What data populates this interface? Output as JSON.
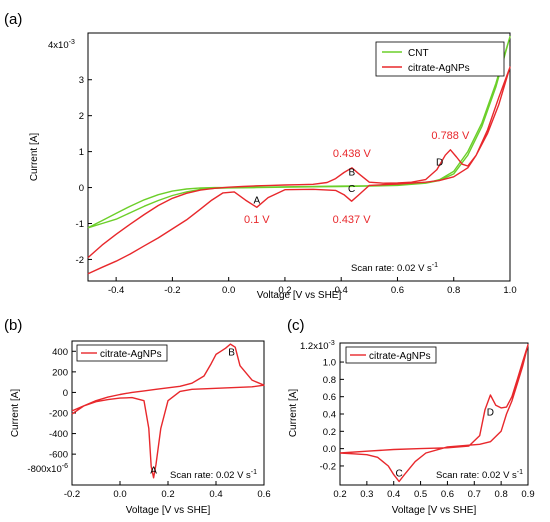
{
  "chart_data": [
    {
      "panel_label": "(a)",
      "type": "line",
      "xlabel": "Voltage [V vs SHE]",
      "ylabel": "Current [A]",
      "y_exponent_label": "4x10",
      "y_exponent_sup": "-3",
      "xlim": [
        -0.5,
        1.0
      ],
      "ylim": [
        -2.6,
        4.3
      ],
      "x_ticks": [
        -0.4,
        -0.2,
        0.0,
        0.2,
        0.4,
        0.6,
        0.8,
        1.0
      ],
      "x_tick_labels": [
        "-0.4",
        "-0.2",
        "0.0",
        "0.2",
        "0.4",
        "0.6",
        "0.8",
        "1.0"
      ],
      "y_ticks": [
        -2,
        -1,
        0,
        1,
        2,
        3
      ],
      "y_tick_labels": [
        "-2",
        "-1",
        "0",
        "1",
        "2",
        "3"
      ],
      "scan_rate_text": "Scan rate: 0.02 V s",
      "scan_rate_sup": "-1",
      "legend_position": "top-right",
      "series": [
        {
          "name": "CNT",
          "color": "#6ccf2a",
          "x": [
            -0.5,
            -0.45,
            -0.4,
            -0.35,
            -0.3,
            -0.25,
            -0.2,
            -0.15,
            -0.1,
            -0.05,
            0.0,
            0.1,
            0.2,
            0.3,
            0.4,
            0.5,
            0.6,
            0.7,
            0.75,
            0.8,
            0.85,
            0.9,
            0.95,
            1.0,
            0.95,
            0.9,
            0.85,
            0.8,
            0.75,
            0.7,
            0.6,
            0.5,
            0.4,
            0.3,
            0.2,
            0.1,
            0.0,
            -0.05,
            -0.1,
            -0.15,
            -0.2,
            -0.25,
            -0.3,
            -0.35,
            -0.4,
            -0.45,
            -0.5
          ],
          "y": [
            -1.12,
            -0.92,
            -0.72,
            -0.52,
            -0.34,
            -0.2,
            -0.1,
            -0.04,
            -0.01,
            0.0,
            0.0,
            0.01,
            0.02,
            0.03,
            0.04,
            0.05,
            0.07,
            0.12,
            0.22,
            0.45,
            1.0,
            1.8,
            2.9,
            4.2,
            2.8,
            1.7,
            0.9,
            0.38,
            0.2,
            0.12,
            0.06,
            0.04,
            0.03,
            0.02,
            0.01,
            0.0,
            -0.01,
            -0.02,
            -0.05,
            -0.12,
            -0.22,
            -0.36,
            -0.52,
            -0.7,
            -0.88,
            -1.0,
            -1.12
          ]
        },
        {
          "name": "citrate-AgNPs",
          "color": "#e8282c",
          "x": [
            -0.5,
            -0.45,
            -0.4,
            -0.35,
            -0.3,
            -0.25,
            -0.2,
            -0.15,
            -0.1,
            -0.05,
            0.0,
            0.05,
            0.1,
            0.15,
            0.2,
            0.25,
            0.3,
            0.35,
            0.38,
            0.41,
            0.438,
            0.46,
            0.5,
            0.55,
            0.6,
            0.65,
            0.7,
            0.74,
            0.77,
            0.788,
            0.81,
            0.83,
            0.85,
            0.88,
            0.92,
            0.96,
            1.0,
            0.96,
            0.92,
            0.88,
            0.85,
            0.8,
            0.75,
            0.7,
            0.6,
            0.5,
            0.46,
            0.437,
            0.41,
            0.38,
            0.3,
            0.2,
            0.14,
            0.1,
            0.06,
            0.02,
            -0.02,
            -0.06,
            -0.1,
            -0.15,
            -0.2,
            -0.25,
            -0.3,
            -0.35,
            -0.4,
            -0.45,
            -0.5
          ],
          "y": [
            -1.95,
            -1.6,
            -1.3,
            -1.02,
            -0.75,
            -0.5,
            -0.3,
            -0.16,
            -0.07,
            -0.02,
            0.01,
            0.03,
            0.05,
            0.06,
            0.07,
            0.08,
            0.09,
            0.14,
            0.25,
            0.42,
            0.55,
            0.4,
            0.15,
            0.12,
            0.13,
            0.15,
            0.22,
            0.5,
            0.9,
            1.05,
            0.85,
            0.65,
            0.6,
            0.9,
            1.6,
            2.5,
            3.35,
            2.3,
            1.5,
            0.9,
            0.55,
            0.3,
            0.2,
            0.15,
            0.1,
            0.06,
            -0.22,
            -0.38,
            -0.2,
            -0.08,
            -0.05,
            -0.06,
            -0.28,
            -0.55,
            -0.35,
            -0.12,
            -0.15,
            -0.35,
            -0.6,
            -0.9,
            -1.15,
            -1.4,
            -1.62,
            -1.85,
            -2.05,
            -2.22,
            -2.4
          ]
        }
      ],
      "annotations": [
        {
          "text": "0.1 V",
          "x": 0.1,
          "y": -0.98,
          "color": "#e8282c"
        },
        {
          "text": "0.438 V",
          "x": 0.438,
          "y": 0.85,
          "color": "#e8282c"
        },
        {
          "text": "0.437 V",
          "x": 0.437,
          "y": -0.98,
          "color": "#e8282c"
        },
        {
          "text": "0.788 V",
          "x": 0.788,
          "y": 1.35,
          "color": "#e8282c"
        }
      ],
      "peak_labels": [
        {
          "text": "A",
          "x": 0.1,
          "y": -0.45
        },
        {
          "text": "B",
          "x": 0.438,
          "y": 0.33
        },
        {
          "text": "C",
          "x": 0.437,
          "y": -0.12
        },
        {
          "text": "D",
          "x": 0.75,
          "y": 0.62
        }
      ]
    },
    {
      "panel_label": "(b)",
      "type": "line",
      "xlabel": "Voltage [V vs SHE]",
      "ylabel": "Current [A]",
      "y_exponent_label": "-800x10",
      "y_exponent_sup": "-6",
      "xlim": [
        -0.2,
        0.6
      ],
      "ylim": [
        -900,
        500
      ],
      "x_ticks": [
        -0.2,
        0.0,
        0.2,
        0.4,
        0.6
      ],
      "x_tick_labels": [
        "-0.2",
        "0.0",
        "0.2",
        "0.4",
        "0.6"
      ],
      "y_ticks": [
        400,
        200,
        0,
        -200,
        -400,
        -600
      ],
      "y_tick_labels": [
        "400",
        "200",
        "0",
        "-200",
        "-400",
        "-600"
      ],
      "scan_rate_text": "Scan rate: 0.02 V s",
      "scan_rate_sup": "-1",
      "legend_position": "top-left",
      "series": [
        {
          "name": "citrate-AgNPs",
          "color": "#e8282c",
          "x": [
            -0.2,
            -0.15,
            -0.1,
            -0.05,
            0.0,
            0.05,
            0.1,
            0.15,
            0.2,
            0.25,
            0.3,
            0.35,
            0.38,
            0.4,
            0.42,
            0.44,
            0.46,
            0.48,
            0.5,
            0.55,
            0.6,
            0.55,
            0.5,
            0.45,
            0.4,
            0.35,
            0.3,
            0.25,
            0.2,
            0.17,
            0.15,
            0.14,
            0.13,
            0.12,
            0.1,
            0.05,
            0.0,
            -0.05,
            -0.1,
            -0.15,
            -0.2
          ],
          "y": [
            -210,
            -130,
            -80,
            -45,
            -20,
            0,
            15,
            30,
            45,
            60,
            90,
            160,
            280,
            370,
            400,
            430,
            470,
            440,
            260,
            120,
            70,
            55,
            50,
            45,
            40,
            35,
            30,
            10,
            -80,
            -350,
            -700,
            -830,
            -720,
            -350,
            -80,
            -50,
            -55,
            -70,
            -90,
            -130,
            -180
          ]
        }
      ],
      "annotations": [],
      "peak_labels": [
        {
          "text": "A",
          "x": 0.14,
          "y": -790
        },
        {
          "text": "B",
          "x": 0.465,
          "y": 360
        }
      ]
    },
    {
      "panel_label": "(c)",
      "type": "line",
      "xlabel": "Voltage [V vs SHE]",
      "ylabel": "Current [A]",
      "y_exponent_label": "1.2x10",
      "y_exponent_sup": "-3",
      "xlim": [
        0.2,
        0.9
      ],
      "ylim": [
        -0.42,
        1.22
      ],
      "x_ticks": [
        0.2,
        0.3,
        0.4,
        0.5,
        0.6,
        0.7,
        0.8,
        0.9
      ],
      "x_tick_labels": [
        "0.2",
        "0.3",
        "0.4",
        "0.5",
        "0.6",
        "0.7",
        "0.8",
        "0.9"
      ],
      "y_ticks": [
        1.0,
        0.8,
        0.6,
        0.4,
        0.2,
        0.0,
        -0.2
      ],
      "y_tick_labels": [
        "1.0",
        "0.8",
        "0.6",
        "0.4",
        "0.2",
        "0.0",
        "-0.2"
      ],
      "scan_rate_text": "Scan rate: 0.02 V s",
      "scan_rate_sup": "-1",
      "legend_position": "top-left",
      "series": [
        {
          "name": "citrate-AgNPs",
          "color": "#e8282c",
          "x": [
            0.2,
            0.3,
            0.4,
            0.5,
            0.6,
            0.68,
            0.72,
            0.74,
            0.76,
            0.78,
            0.8,
            0.82,
            0.84,
            0.86,
            0.88,
            0.9,
            0.88,
            0.86,
            0.84,
            0.82,
            0.8,
            0.76,
            0.72,
            0.68,
            0.6,
            0.52,
            0.48,
            0.44,
            0.42,
            0.4,
            0.38,
            0.34,
            0.3,
            0.25,
            0.2
          ],
          "y": [
            -0.05,
            -0.03,
            -0.01,
            0.0,
            0.01,
            0.03,
            0.15,
            0.45,
            0.62,
            0.5,
            0.47,
            0.48,
            0.6,
            0.8,
            1.0,
            1.2,
            0.95,
            0.75,
            0.55,
            0.4,
            0.2,
            0.08,
            0.05,
            0.04,
            0.02,
            -0.05,
            -0.15,
            -0.3,
            -0.38,
            -0.3,
            -0.2,
            -0.1,
            -0.07,
            -0.06,
            -0.05
          ]
        }
      ],
      "annotations": [],
      "peak_labels": [
        {
          "text": "C",
          "x": 0.42,
          "y": -0.32
        },
        {
          "text": "D",
          "x": 0.76,
          "y": 0.38
        }
      ]
    }
  ]
}
